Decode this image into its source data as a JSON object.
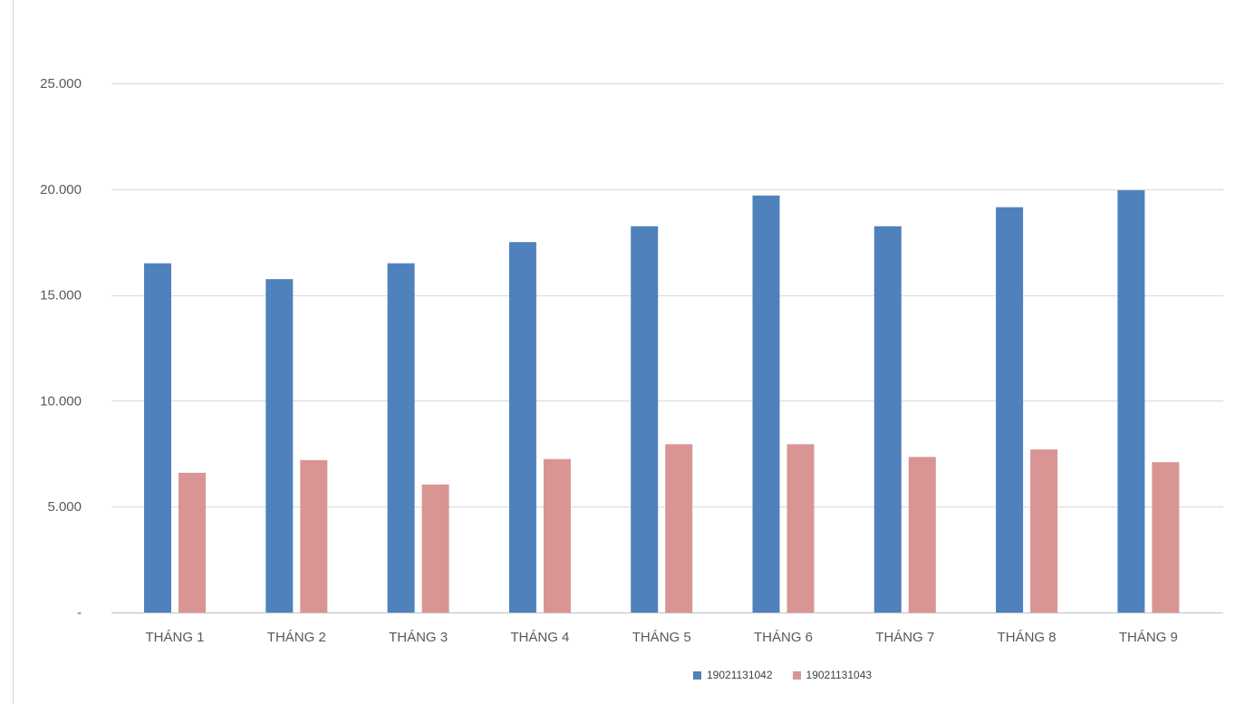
{
  "chart_data": {
    "type": "bar",
    "categories": [
      "THÁNG 1",
      "THÁNG 2",
      "THÁNG 3",
      "THÁNG 4",
      "THÁNG 5",
      "THÁNG 6",
      "THÁNG 7",
      "THÁNG 8",
      "THÁNG 9"
    ],
    "series": [
      {
        "name": "19021131042",
        "color": "#4f81bd",
        "values": [
          16500,
          15750,
          16500,
          17500,
          18250,
          19700,
          18250,
          19150,
          19950
        ]
      },
      {
        "name": "19021131043",
        "color": "#d99594",
        "values": [
          6600,
          7200,
          6050,
          7250,
          7950,
          7950,
          7350,
          7700,
          7100
        ]
      }
    ],
    "ylim": [
      0,
      25000
    ],
    "yticks": [
      0,
      5000,
      10000,
      15000,
      20000,
      25000
    ],
    "ytick_labels": [
      "-",
      "5.000",
      "10.000",
      "15.000",
      "20.000",
      "25.000"
    ],
    "grid": true,
    "legend_position": "bottom",
    "title": "",
    "xlabel": "",
    "ylabel": ""
  }
}
